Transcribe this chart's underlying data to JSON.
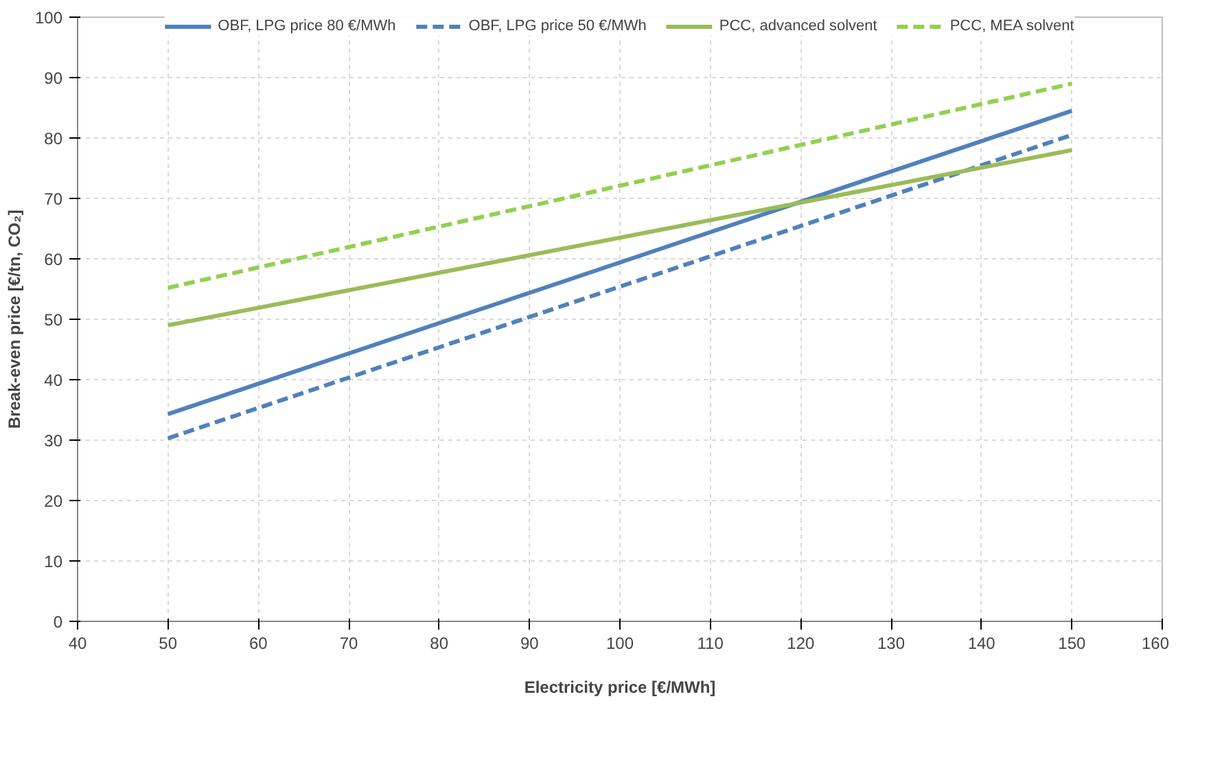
{
  "chart_data": {
    "type": "line",
    "xlabel": "Electricity price [€/MWh]",
    "ylabel": "Break-even price [€/tn, CO₂]",
    "x": [
      50,
      150
    ],
    "series": [
      {
        "name": "OBF, LPG price 80 €/MWh",
        "color": "#4f81bd",
        "values": [
          34.3,
          84.5
        ],
        "line_style": "solid"
      },
      {
        "name": "OBF, LPG price 50 €/MWh",
        "color": "#4f81bd",
        "values": [
          30.3,
          80.5
        ],
        "line_style": "dashed"
      },
      {
        "name": "PCC, advanced solvent",
        "color": "#9bbb59",
        "values": [
          49,
          78
        ],
        "line_style": "solid"
      },
      {
        "name": "PCC, MEA solvent",
        "color": "#92d050",
        "values": [
          55.2,
          89
        ],
        "line_style": "dashed"
      }
    ],
    "xlim": [
      40,
      160
    ],
    "xticks": [
      40,
      50,
      60,
      70,
      80,
      90,
      100,
      110,
      120,
      130,
      140,
      150,
      160
    ],
    "ylim": [
      0,
      100
    ],
    "yticks": [
      0,
      10,
      20,
      30,
      40,
      50,
      60,
      70,
      80,
      90,
      100
    ],
    "grid": true,
    "legend": "top",
    "marker": "none"
  }
}
